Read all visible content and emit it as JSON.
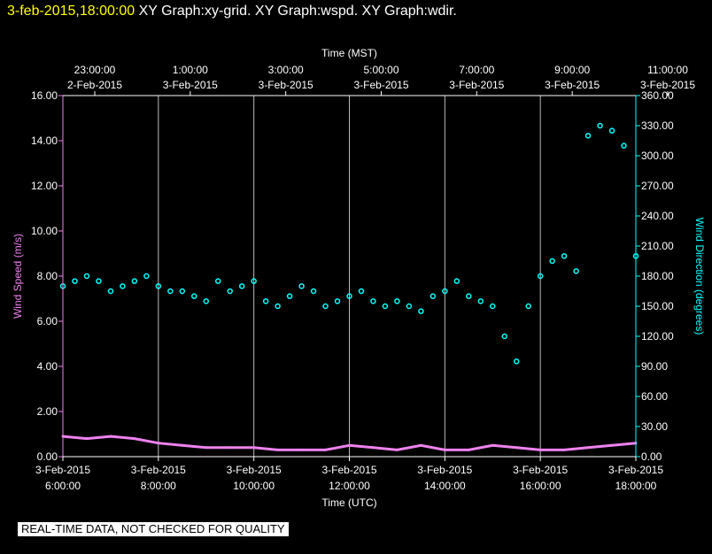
{
  "header": {
    "timestamp": "3-feb-2015,18:00:00",
    "graphs": "XY Graph:xy-grid.  XY Graph:wspd.  XY Graph:wdir."
  },
  "disclaimer": "REAL-TIME DATA, NOT CHECKED FOR QUALITY",
  "colors": {
    "background": "#000000",
    "axes": "#ffffff",
    "wind_speed": "#ee82ee",
    "wind_direction": "#00ffff",
    "timestamp": "#ffff00"
  },
  "chart_data": {
    "type": "scatter",
    "grid": true,
    "top_axis_title": "Time (MST)",
    "bottom_axis_title": "Time (UTC)",
    "top_ticks": [
      {
        "time": "23:00:00",
        "date": "2-Feb-2015"
      },
      {
        "time": "1:00:00",
        "date": "3-Feb-2015"
      },
      {
        "time": "3:00:00",
        "date": "3-Feb-2015"
      },
      {
        "time": "5:00:00",
        "date": "3-Feb-2015"
      },
      {
        "time": "7:00:00",
        "date": "3-Feb-2015"
      },
      {
        "time": "9:00:00",
        "date": "3-Feb-2015"
      },
      {
        "time": "11:00:00",
        "date": "3-Feb-2015"
      }
    ],
    "bottom_ticks": [
      {
        "date": "3-Feb-2015",
        "time": "6:00:00"
      },
      {
        "date": "3-Feb-2015",
        "time": "8:00:00"
      },
      {
        "date": "3-Feb-2015",
        "time": "10:00:00"
      },
      {
        "date": "3-Feb-2015",
        "time": "12:00:00"
      },
      {
        "date": "3-Feb-2015",
        "time": "14:00:00"
      },
      {
        "date": "3-Feb-2015",
        "time": "16:00:00"
      },
      {
        "date": "3-Feb-2015",
        "time": "18:00:00"
      }
    ],
    "x_range_utc_hours": [
      6,
      18
    ],
    "left_axis": {
      "label": "Wind Speed (m/s)",
      "range": [
        0,
        16
      ],
      "ticks": [
        "0.00",
        "2.00",
        "4.00",
        "6.00",
        "8.00",
        "10.00",
        "12.00",
        "14.00",
        "16.00"
      ]
    },
    "right_axis": {
      "label": "Wind Direction (degrees)",
      "range": [
        0,
        360
      ],
      "ticks": [
        "0.00",
        "30.00",
        "60.00",
        "90.00",
        "120.00",
        "150.00",
        "180.00",
        "210.00",
        "240.00",
        "270.00",
        "300.00",
        "330.00",
        "360.00"
      ]
    },
    "series": [
      {
        "name": "Wind Speed",
        "axis": "left",
        "style": "line",
        "x": [
          6.0,
          6.5,
          7.0,
          7.5,
          8.0,
          8.5,
          9.0,
          9.5,
          10.0,
          10.5,
          11.0,
          11.5,
          12.0,
          12.5,
          13.0,
          13.5,
          14.0,
          14.5,
          15.0,
          15.5,
          16.0,
          16.5,
          17.0,
          17.5,
          18.0
        ],
        "y": [
          0.9,
          0.8,
          0.9,
          0.8,
          0.6,
          0.5,
          0.4,
          0.4,
          0.4,
          0.3,
          0.3,
          0.3,
          0.5,
          0.4,
          0.3,
          0.5,
          0.3,
          0.3,
          0.5,
          0.4,
          0.3,
          0.3,
          0.4,
          0.5,
          0.6
        ]
      },
      {
        "name": "Wind Direction",
        "axis": "right",
        "style": "markers",
        "x": [
          6.0,
          6.25,
          6.5,
          6.75,
          7.0,
          7.25,
          7.5,
          7.75,
          8.0,
          8.25,
          8.5,
          8.75,
          9.0,
          9.25,
          9.5,
          9.75,
          10.0,
          10.25,
          10.5,
          10.75,
          11.0,
          11.25,
          11.5,
          11.75,
          12.0,
          12.25,
          12.5,
          12.75,
          13.0,
          13.25,
          13.5,
          13.75,
          14.0,
          14.25,
          14.5,
          14.75,
          15.0,
          15.25,
          15.5,
          15.75,
          16.0,
          16.25,
          16.5,
          16.75,
          17.0,
          17.25,
          17.5,
          17.75,
          18.0
        ],
        "y": [
          170,
          175,
          180,
          175,
          165,
          170,
          175,
          180,
          170,
          165,
          165,
          160,
          155,
          175,
          165,
          170,
          175,
          155,
          150,
          160,
          170,
          165,
          150,
          155,
          160,
          165,
          155,
          150,
          155,
          150,
          145,
          160,
          165,
          175,
          160,
          155,
          150,
          120,
          95,
          150,
          180,
          195,
          200,
          185,
          320,
          330,
          325,
          310,
          200
        ]
      }
    ]
  }
}
